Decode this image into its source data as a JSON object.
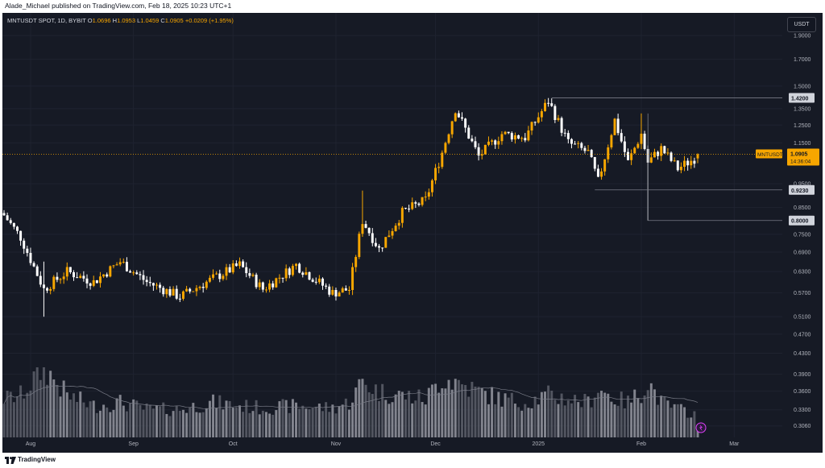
{
  "header": {
    "published_line": "Alade_Michael published on TradingView.com, Feb 18, 2025 10:23 UTC+1"
  },
  "legend": {
    "symbol": "MNTUSDT SPOT, 1D, BYBIT",
    "o_label": "O",
    "o": "1.0696",
    "h_label": "H",
    "h": "1.0953",
    "l_label": "L",
    "l": "1.0459",
    "c_label": "C",
    "c": "1.0905",
    "change": "+0.0209 (+1.95%)"
  },
  "currency_button": "USDT",
  "footer": {
    "brand": "TradingView"
  },
  "colors": {
    "up": "#f7a600",
    "down": "#ffffff",
    "background": "#161a25",
    "axis_text": "#b2b5be",
    "level_line": "#787b86",
    "price_line": "#f7a600"
  },
  "chart_data": {
    "type": "candlestick",
    "symbol": "MNTUSDT",
    "exchange": "BYBIT",
    "interval": "1D",
    "y_scale": "log",
    "y_ticks": [
      "1.9000",
      "1.7000",
      "1.5000",
      "1.3500",
      "1.2500",
      "1.1500",
      "0.9500",
      "0.8500",
      "0.7500",
      "0.6900",
      "0.6300",
      "0.5700",
      "0.5100",
      "0.4700",
      "0.4300",
      "0.3900",
      "0.3600",
      "0.3300",
      "0.3060"
    ],
    "ylim": [
      0.29,
      2.05
    ],
    "x_ticks": [
      {
        "label": "Aug",
        "date": "2024-08-01"
      },
      {
        "label": "Sep",
        "date": "2024-09-01"
      },
      {
        "label": "Oct",
        "date": "2024-10-01"
      },
      {
        "label": "Nov",
        "date": "2024-11-01"
      },
      {
        "label": "Dec",
        "date": "2024-12-01"
      },
      {
        "label": "2025",
        "date": "2025-01-01"
      },
      {
        "label": "Feb",
        "date": "2025-02-01"
      },
      {
        "label": "Mar",
        "date": "2025-03-01"
      }
    ],
    "x_start": "2024-07-24",
    "x_end": "2025-03-15",
    "current_price": {
      "label": "MNTUSDT",
      "value": "1.0905",
      "countdown": "14:36:04"
    },
    "levels": [
      {
        "value": "1.4200",
        "from": "2025-01-05"
      },
      {
        "value": "0.9230",
        "from": "2025-01-18"
      },
      {
        "value": "0.8000",
        "from": "2025-02-03"
      }
    ],
    "anchors": [
      {
        "date": "2024-07-24",
        "close": 0.82,
        "vol": 0.55
      },
      {
        "date": "2024-07-29",
        "close": 0.74,
        "vol": 0.6
      },
      {
        "date": "2024-08-05",
        "close": 0.58,
        "vol": 1.0,
        "low": 0.51,
        "high": 0.66
      },
      {
        "date": "2024-08-12",
        "close": 0.63,
        "vol": 0.6
      },
      {
        "date": "2024-08-20",
        "close": 0.6,
        "vol": 0.45
      },
      {
        "date": "2024-08-28",
        "close": 0.66,
        "vol": 0.5
      },
      {
        "date": "2024-09-05",
        "close": 0.6,
        "vol": 0.4
      },
      {
        "date": "2024-09-15",
        "close": 0.56,
        "vol": 0.4
      },
      {
        "date": "2024-09-25",
        "close": 0.61,
        "vol": 0.5
      },
      {
        "date": "2024-10-03",
        "close": 0.65,
        "vol": 0.45
      },
      {
        "date": "2024-10-10",
        "close": 0.58,
        "vol": 0.42
      },
      {
        "date": "2024-10-20",
        "close": 0.65,
        "vol": 0.45
      },
      {
        "date": "2024-10-31",
        "close": 0.57,
        "vol": 0.42
      },
      {
        "date": "2024-11-05",
        "close": 0.58,
        "vol": 0.5
      },
      {
        "date": "2024-11-09",
        "close": 0.8,
        "vol": 0.8,
        "high": 0.92
      },
      {
        "date": "2024-11-14",
        "close": 0.7,
        "vol": 0.65
      },
      {
        "date": "2024-11-21",
        "close": 0.83,
        "vol": 0.6
      },
      {
        "date": "2024-11-28",
        "close": 0.88,
        "vol": 0.55
      },
      {
        "date": "2024-12-03",
        "close": 1.1,
        "vol": 0.85
      },
      {
        "date": "2024-12-07",
        "close": 1.35,
        "vol": 0.8
      },
      {
        "date": "2024-12-14",
        "close": 1.08,
        "vol": 0.65
      },
      {
        "date": "2024-12-21",
        "close": 1.2,
        "vol": 0.55
      },
      {
        "date": "2024-12-28",
        "close": 1.18,
        "vol": 0.5
      },
      {
        "date": "2025-01-04",
        "close": 1.4,
        "vol": 0.6
      },
      {
        "date": "2025-01-10",
        "close": 1.15,
        "vol": 0.55
      },
      {
        "date": "2025-01-16",
        "close": 1.1,
        "vol": 0.5
      },
      {
        "date": "2025-01-19",
        "close": 0.96,
        "vol": 0.7
      },
      {
        "date": "2025-01-24",
        "close": 1.28,
        "vol": 0.55
      },
      {
        "date": "2025-01-28",
        "close": 1.05,
        "vol": 0.5
      },
      {
        "date": "2025-02-01",
        "close": 1.2,
        "vol": 0.65,
        "high": 1.32
      },
      {
        "date": "2025-02-03",
        "close": 1.05,
        "vol": 0.8,
        "low": 0.8
      },
      {
        "date": "2025-02-07",
        "close": 1.12,
        "vol": 0.5
      },
      {
        "date": "2025-02-12",
        "close": 1.02,
        "vol": 0.4
      },
      {
        "date": "2025-02-17",
        "close": 1.07,
        "vol": 0.35
      },
      {
        "date": "2025-02-18",
        "close": 1.0905,
        "vol": 0.12,
        "open": 1.0696,
        "high": 1.0953,
        "low": 1.0459
      }
    ]
  }
}
